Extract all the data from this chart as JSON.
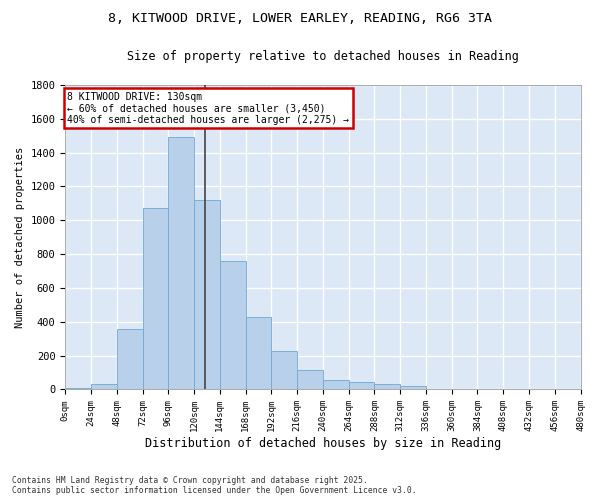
{
  "title_line1": "8, KITWOOD DRIVE, LOWER EARLEY, READING, RG6 3TA",
  "title_line2": "Size of property relative to detached houses in Reading",
  "xlabel": "Distribution of detached houses by size in Reading",
  "ylabel": "Number of detached properties",
  "bar_color": "#b8d0ea",
  "bar_edge_color": "#6fa8d4",
  "vline_color": "#444444",
  "annotation_text": "8 KITWOOD DRIVE: 130sqm\n← 60% of detached houses are smaller (3,450)\n40% of semi-detached houses are larger (2,275) →",
  "annotation_box_edgecolor": "#cc0000",
  "plot_bg_color": "#dce8f5",
  "grid_color": "#ffffff",
  "fig_bg_color": "#ffffff",
  "bins": [
    0,
    24,
    48,
    72,
    96,
    120,
    144,
    168,
    192,
    216,
    240,
    264,
    288,
    312,
    336,
    360,
    384,
    408,
    432,
    456,
    480
  ],
  "counts": [
    10,
    35,
    360,
    1070,
    1490,
    1120,
    760,
    430,
    225,
    115,
    55,
    45,
    30,
    20,
    5,
    2,
    2,
    1,
    0,
    0
  ],
  "vline_x": 130,
  "ylim": [
    0,
    1800
  ],
  "yticks": [
    0,
    200,
    400,
    600,
    800,
    1000,
    1200,
    1400,
    1600,
    1800
  ],
  "xtick_labels": [
    "0sqm",
    "24sqm",
    "48sqm",
    "72sqm",
    "96sqm",
    "120sqm",
    "144sqm",
    "168sqm",
    "192sqm",
    "216sqm",
    "240sqm",
    "264sqm",
    "288sqm",
    "312sqm",
    "336sqm",
    "360sqm",
    "384sqm",
    "408sqm",
    "432sqm",
    "456sqm",
    "480sqm"
  ],
  "footer_text": "Contains HM Land Registry data © Crown copyright and database right 2025.\nContains public sector information licensed under the Open Government Licence v3.0."
}
